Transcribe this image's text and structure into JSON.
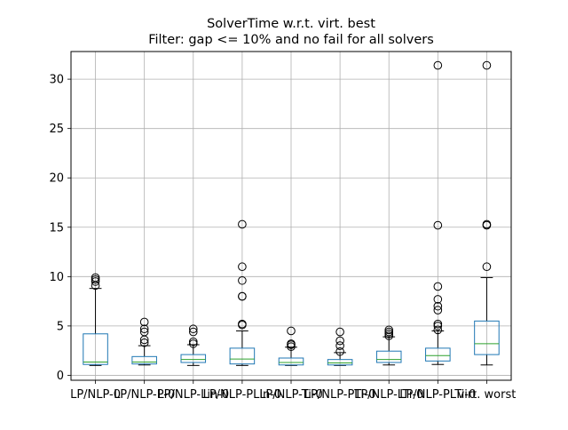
{
  "chart_data": {
    "type": "box",
    "title": "SolverTime w.r.t. virt. best",
    "subtitle": "Filter: gap <= 10% and no fail for all solvers",
    "xlabel": "",
    "ylabel": "",
    "ylim": [
      -0.5,
      32.8
    ],
    "yticks": [
      0,
      5,
      10,
      15,
      20,
      25,
      30
    ],
    "grid": true,
    "colors": {
      "box": "#1f77b4",
      "median": "#2ca02c",
      "whisker": "#000000",
      "grid": "#b0b0b0",
      "flier": "#000000"
    },
    "categories": [
      "LP/NLP-0",
      "LP/NLP-P-0",
      "LP/NLP-Lin-0",
      "LP/NLP-PLin-0",
      "LP/NLP-Ti-0",
      "LP/NLP-PTi-0",
      "LP/NLP-LTi-0",
      "LP/NLP-PLTi-0",
      "virt. worst"
    ],
    "boxes": [
      {
        "whislo": 1.0,
        "q1": 1.1,
        "med": 1.35,
        "q3": 4.2,
        "whishi": 8.8,
        "fliers": [
          9.1,
          9.5,
          9.7,
          9.9
        ]
      },
      {
        "whislo": 1.05,
        "q1": 1.15,
        "med": 1.35,
        "q3": 1.9,
        "whishi": 3.0,
        "fliers": [
          3.3,
          3.6,
          4.4,
          4.7,
          5.4
        ]
      },
      {
        "whislo": 1.0,
        "q1": 1.3,
        "med": 1.6,
        "q3": 2.1,
        "whishi": 3.1,
        "fliers": [
          3.2,
          3.4,
          4.4,
          4.7
        ]
      },
      {
        "whislo": 1.0,
        "q1": 1.15,
        "med": 1.65,
        "q3": 2.75,
        "whishi": 4.5,
        "fliers": [
          5.1,
          5.2,
          8.0,
          8.0,
          9.6,
          11.0,
          15.3
        ]
      },
      {
        "whislo": 1.0,
        "q1": 1.05,
        "med": 1.3,
        "q3": 1.75,
        "whishi": 2.85,
        "fliers": [
          2.9,
          3.1,
          3.2,
          4.5
        ]
      },
      {
        "whislo": 1.0,
        "q1": 1.05,
        "med": 1.25,
        "q3": 1.6,
        "whishi": 2.3,
        "fliers": [
          2.4,
          3.0,
          3.5,
          4.4
        ]
      },
      {
        "whislo": 1.05,
        "q1": 1.3,
        "med": 1.6,
        "q3": 2.45,
        "whishi": 3.9,
        "fliers": [
          4.0,
          4.2,
          4.4,
          4.6
        ]
      },
      {
        "whislo": 1.1,
        "q1": 1.45,
        "med": 2.0,
        "q3": 2.75,
        "whishi": 4.5,
        "fliers": [
          4.6,
          5.0,
          5.2,
          6.6,
          7.0,
          7.7,
          9.0,
          15.2,
          31.4
        ]
      },
      {
        "whislo": 1.05,
        "q1": 2.1,
        "med": 3.2,
        "q3": 5.5,
        "whishi": 9.9,
        "fliers": [
          11.0,
          15.2,
          15.3,
          31.4
        ]
      }
    ]
  }
}
